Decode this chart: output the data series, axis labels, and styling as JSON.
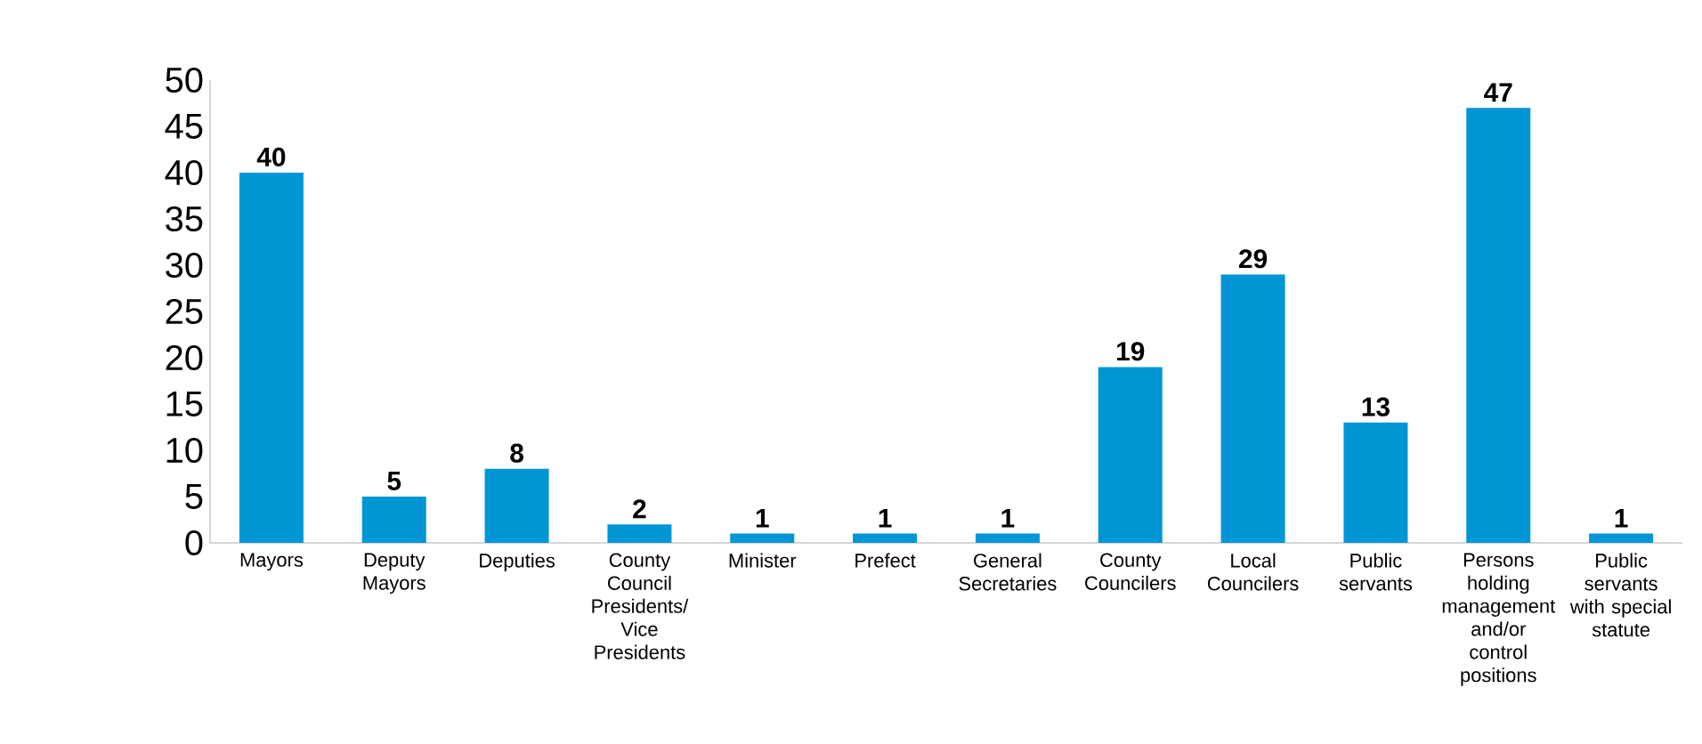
{
  "chart_data": {
    "type": "bar",
    "categories": [
      "Mayors",
      "Deputy Mayors",
      "Deputies",
      "County Council Presidents/ Vice Presidents",
      "Minister",
      "Prefect",
      "General Secretaries",
      "County Councilers",
      "Local Councilers",
      "Public servants",
      "Persons holding management and/or control positions",
      "Public servants with special statute"
    ],
    "values": [
      40,
      5,
      8,
      2,
      1,
      1,
      1,
      19,
      29,
      13,
      47,
      1
    ],
    "color": "#0096d6",
    "ylim": [
      0,
      50
    ],
    "yticks": [
      0,
      5,
      10,
      15,
      20,
      25,
      30,
      35,
      40,
      45,
      50
    ],
    "data_labels": true,
    "grid": false
  }
}
